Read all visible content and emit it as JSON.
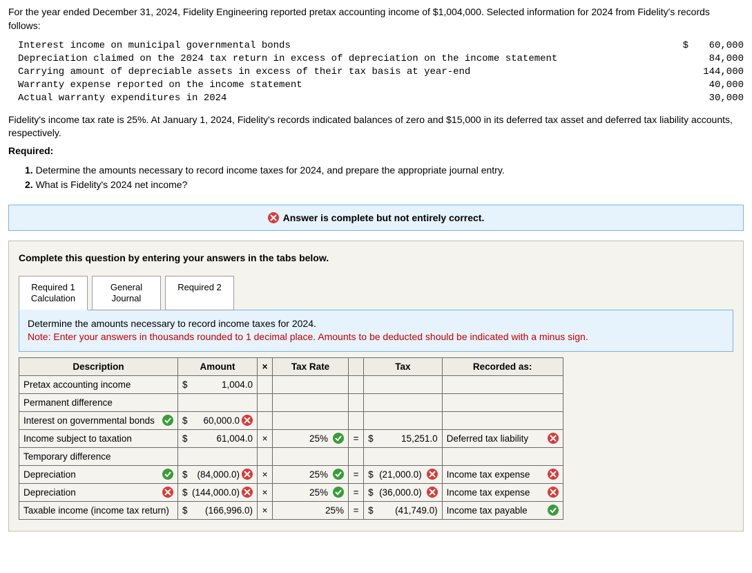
{
  "intro": "For the year ended December 31, 2024, Fidelity Engineering reported pretax accounting income of $1,004,000. Selected information for 2024 from Fidelity's records follows:",
  "mono": {
    "rows": [
      {
        "desc": "Interest income on municipal governmental bonds",
        "dollar": "$",
        "val": "60,000"
      },
      {
        "desc": "Depreciation claimed on the 2024 tax return in excess of depreciation on the income statement",
        "dollar": "",
        "val": "84,000"
      },
      {
        "desc": "Carrying amount of depreciable assets in excess of their tax basis at year-end",
        "dollar": "",
        "val": "144,000"
      },
      {
        "desc": "Warranty expense reported on the income statement",
        "dollar": "",
        "val": "40,000"
      },
      {
        "desc": "Actual warranty expenditures in 2024",
        "dollar": "",
        "val": "30,000"
      }
    ]
  },
  "para2": "Fidelity's income tax rate is 25%. At January 1, 2024, Fidelity's records indicated balances of zero and $15,000 in its deferred tax asset and deferred tax liability accounts, respectively.",
  "required_label": "Required:",
  "requirements": [
    "1. Determine the amounts necessary to record income taxes for 2024, and prepare the appropriate journal entry.",
    "2. What is Fidelity's 2024 net income?"
  ],
  "banner": "Answer is complete but not entirely correct.",
  "prompt": "Complete this question by entering your answers in the tabs below.",
  "tabs": [
    "Required 1 Calculation",
    "General Journal",
    "Required 2"
  ],
  "instruct": {
    "line1": "Determine the amounts necessary to record income taxes for 2024.",
    "note": "Note: Enter your answers in thousands rounded to 1 decimal place. Amounts to be deducted should be indicated with a minus sign."
  },
  "headers": {
    "desc": "Description",
    "amt": "Amount",
    "x": "×",
    "rate": "Tax Rate",
    "tax": "Tax",
    "rec": "Recorded as:"
  },
  "rows": [
    {
      "desc": "Pretax accounting income",
      "amt_cur": "$",
      "amt": "1,004.0"
    },
    {
      "desc": "Permanent difference"
    },
    {
      "desc": "Interest on governmental bonds",
      "desc_badge": "ok",
      "amt_cur": "$",
      "amt": "60,000.0",
      "amt_badge": "err"
    },
    {
      "desc": "Income subject to taxation",
      "amt_cur": "$",
      "amt": "61,004.0",
      "x": "×",
      "rate": "25%",
      "rate_badge": "ok",
      "eq": "=",
      "tax_cur": "$",
      "tax": "15,251.0",
      "rec": "Deferred tax liability",
      "rec_badge": "err"
    },
    {
      "desc": "Temporary difference"
    },
    {
      "desc": "Depreciation",
      "desc_badge": "ok",
      "amt_cur": "$",
      "amt": "(84,000.0)",
      "amt_badge": "err",
      "x": "×",
      "rate": "25%",
      "rate_badge": "ok",
      "eq": "=",
      "tax_cur": "$",
      "tax": "(21,000.0)",
      "tax_badge": "err",
      "rec": "Income tax expense",
      "rec_badge": "err"
    },
    {
      "desc": "Depreciation",
      "desc_badge": "err",
      "amt_cur": "$",
      "amt": "(144,000.0)",
      "amt_badge": "err",
      "x": "×",
      "rate": "25%",
      "rate_badge": "ok",
      "eq": "=",
      "tax_cur": "$",
      "tax": "(36,000.0)",
      "tax_badge": "err",
      "rec": "Income tax expense",
      "rec_badge": "err"
    },
    {
      "desc": "Taxable income (income tax return)",
      "amt_cur": "$",
      "amt": "(166,996.0)",
      "x": "×",
      "rate": "25%",
      "eq": "=",
      "tax_cur": "$",
      "tax": "(41,749.0)",
      "rec": "Income tax payable",
      "rec_badge": "ok"
    }
  ],
  "colors": {
    "ok": "#3a9d3a",
    "err": "#d63b3b",
    "banner_bg": "#e6f2fc",
    "banner_border": "#7bb3e0"
  }
}
